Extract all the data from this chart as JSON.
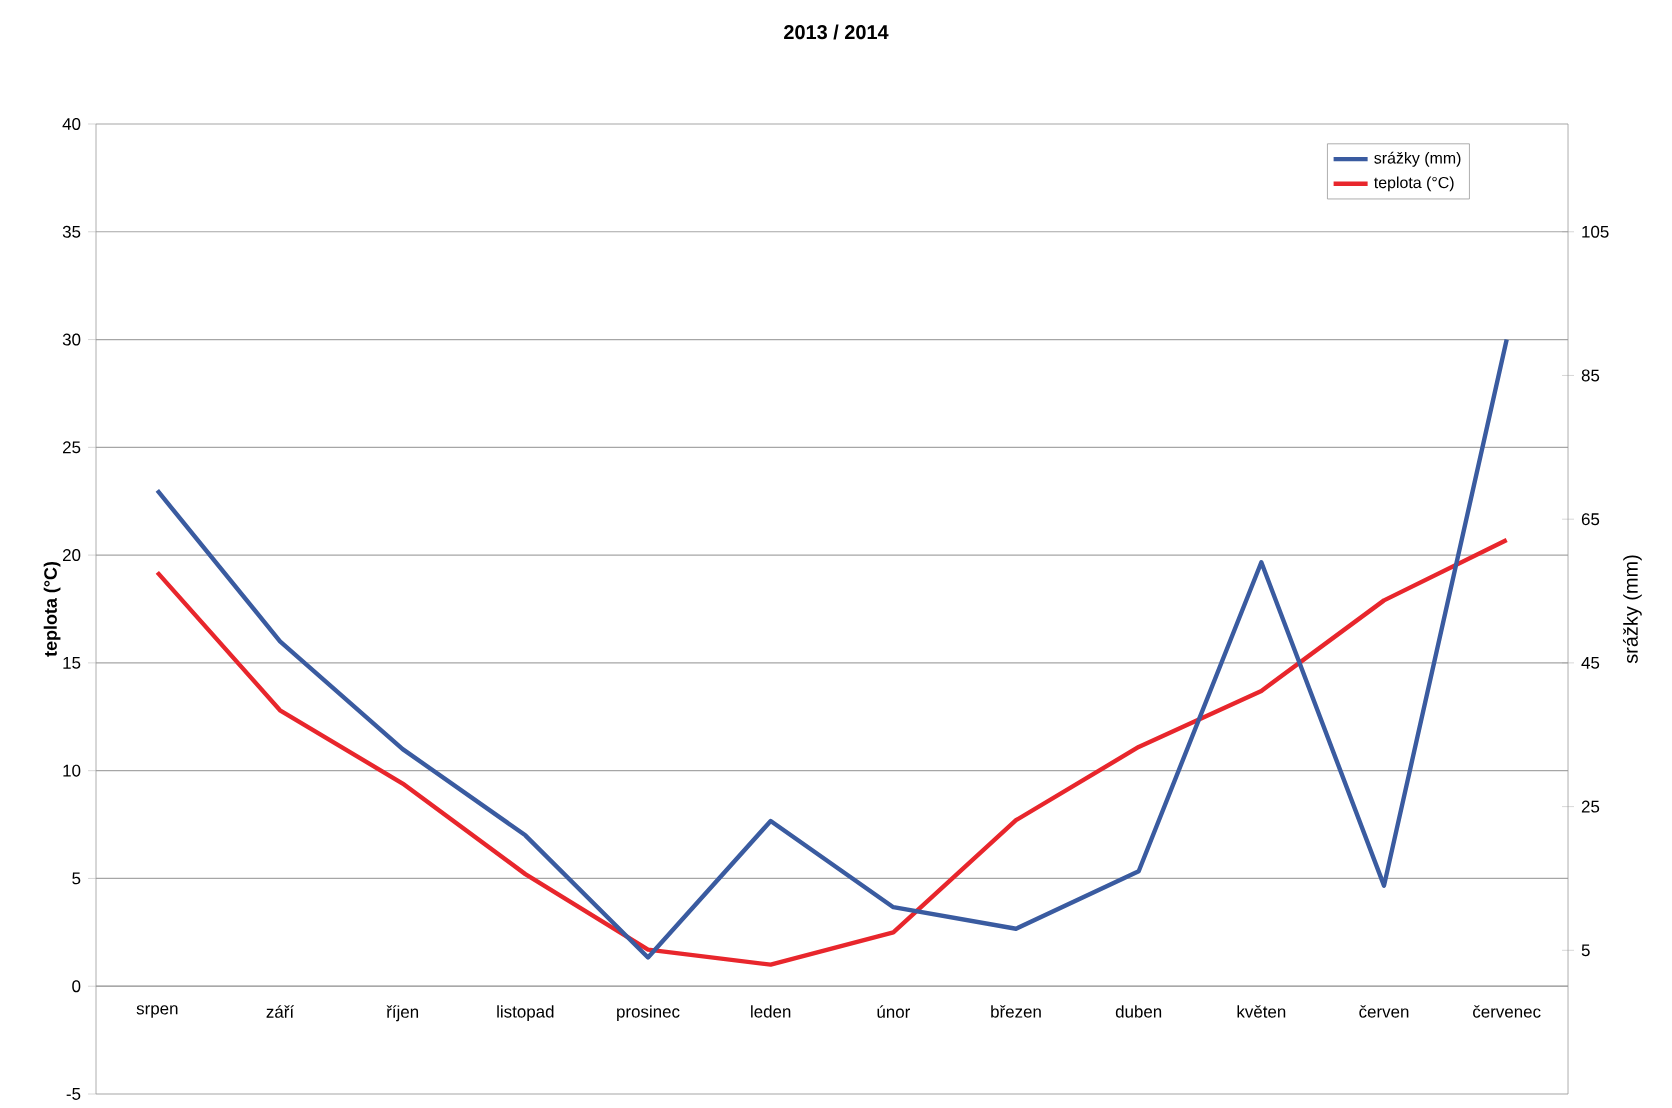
{
  "chart_data": {
    "type": "line",
    "title": "2013 / 2014",
    "ylabel": "teplota (°C)",
    "y2label": "srážky (mm)",
    "categories": [
      "srpen",
      "září",
      "říjen",
      "listopad",
      "prosinec",
      "leden",
      "únor",
      "březen",
      "duben",
      "květen",
      "červen",
      "červenec"
    ],
    "series": [
      {
        "name": "srážky (mm)",
        "color": "#3a5ba0",
        "axis": "y2",
        "values": [
          69,
          48,
          33,
          21,
          4,
          23,
          11,
          8,
          16,
          59,
          14,
          90
        ]
      },
      {
        "name": "teplota (°C)",
        "color": "#e8262c",
        "values": [
          19.2,
          12.8,
          9.4,
          5.2,
          1.7,
          1.0,
          2.5,
          7.7,
          11.1,
          13.7,
          17.9,
          20.7
        ]
      }
    ],
    "ylim": [
      -5,
      40
    ],
    "yticks": [
      -5,
      0,
      5,
      10,
      15,
      20,
      25,
      30,
      35,
      40
    ],
    "y2lim": [
      -15,
      120
    ],
    "y2ticks": [
      5,
      25,
      45,
      65,
      85,
      105
    ],
    "grid": "y",
    "legend": "top right",
    "line_style": "solid"
  }
}
